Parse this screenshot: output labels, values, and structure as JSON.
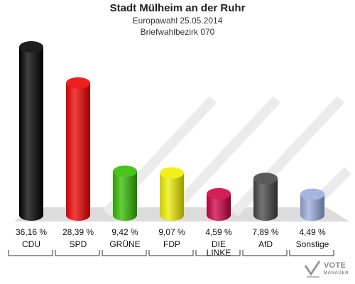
{
  "header": {
    "title": "Stadt Mülheim an der Ruhr",
    "subtitle1": "Europawahl 25.05.2014",
    "subtitle2": "Briefwahlbezirk 070"
  },
  "chart_data": {
    "type": "bar",
    "categories": [
      "CDU",
      "SPD",
      "GRÜNE",
      "FDP",
      "DIE LINKE",
      "AfD",
      "Sonstige"
    ],
    "category_lines": [
      [
        "CDU"
      ],
      [
        "SPD"
      ],
      [
        "GRÜNE"
      ],
      [
        "FDP"
      ],
      [
        "DIE",
        "LINKE"
      ],
      [
        "AfD"
      ],
      [
        "Sonstige"
      ]
    ],
    "values": [
      36.16,
      28.39,
      9.42,
      9.07,
      4.59,
      7.89,
      4.49
    ],
    "value_labels": [
      "36,16 %",
      "28,39 %",
      "9,42 %",
      "9,07 %",
      "4,59 %",
      "7,89 %",
      "4,49 %"
    ],
    "colors": [
      "#000000",
      "#ee0000",
      "#33bb00",
      "#eeee00",
      "#cc0044",
      "#444444",
      "#99aadd"
    ],
    "style": "3d-cylinder",
    "grid": false,
    "legend": "none"
  },
  "logo": {
    "line1": "VOTE",
    "line2": "MANAGER"
  }
}
